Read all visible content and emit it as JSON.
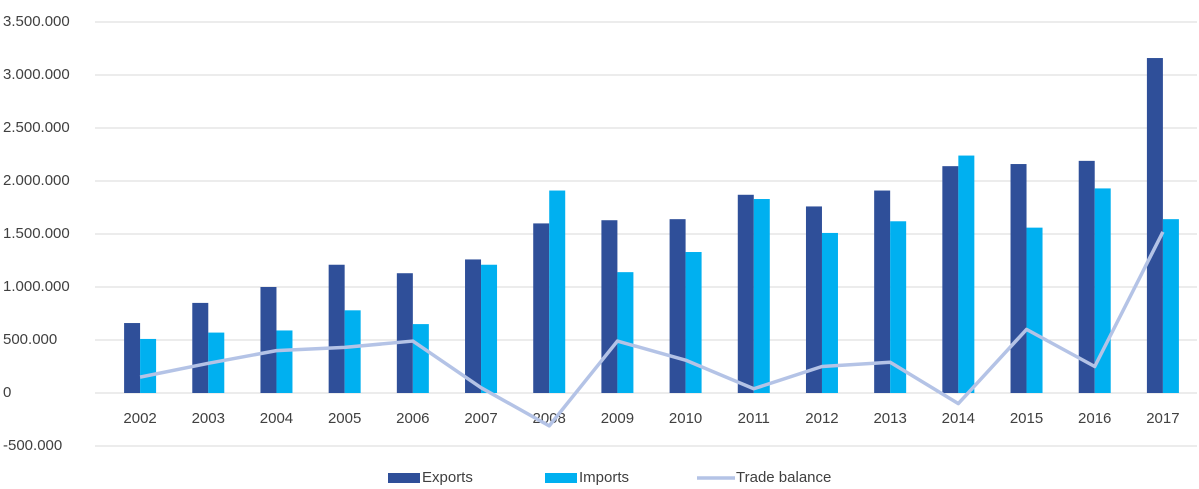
{
  "chart_data": {
    "type": "bar_line",
    "categories": [
      "2002",
      "2003",
      "2004",
      "2005",
      "2006",
      "2007",
      "2008",
      "2009",
      "2010",
      "2011",
      "2012",
      "2013",
      "2014",
      "2015",
      "2016",
      "2017"
    ],
    "series": [
      {
        "name": "Exports",
        "type": "bar",
        "color": "#2f4f99",
        "values": [
          660000,
          850000,
          1000000,
          1210000,
          1130000,
          1260000,
          1600000,
          1630000,
          1640000,
          1870000,
          1760000,
          1910000,
          2140000,
          2160000,
          2190000,
          3160000
        ]
      },
      {
        "name": "Imports",
        "type": "bar",
        "color": "#00b0f0",
        "values": [
          510000,
          570000,
          590000,
          780000,
          650000,
          1210000,
          1910000,
          1140000,
          1330000,
          1830000,
          1510000,
          1620000,
          2240000,
          1560000,
          1930000,
          1640000
        ]
      },
      {
        "name": "Trade balance",
        "type": "line",
        "color": "#b4c3e6",
        "values": [
          150000,
          280000,
          400000,
          430000,
          490000,
          50000,
          -310000,
          490000,
          310000,
          40000,
          250000,
          290000,
          -100000,
          600000,
          250000,
          1520000
        ]
      }
    ],
    "ylim": [
      -500000,
      3500000
    ],
    "yticks": [
      {
        "value": -500000,
        "label": "-500.000"
      },
      0,
      {
        "value": 500000,
        "label": "500.000"
      },
      {
        "value": 1000000,
        "label": "1.000.000"
      },
      {
        "value": 1500000,
        "label": "1.500.000"
      },
      {
        "value": 2000000,
        "label": "2.000.000"
      },
      {
        "value": 2500000,
        "label": "2.500.000"
      },
      {
        "value": 3000000,
        "label": "3.000.000"
      },
      {
        "value": 3500000,
        "label": "3.500.000"
      }
    ],
    "grid": true,
    "legend": "bottom"
  }
}
